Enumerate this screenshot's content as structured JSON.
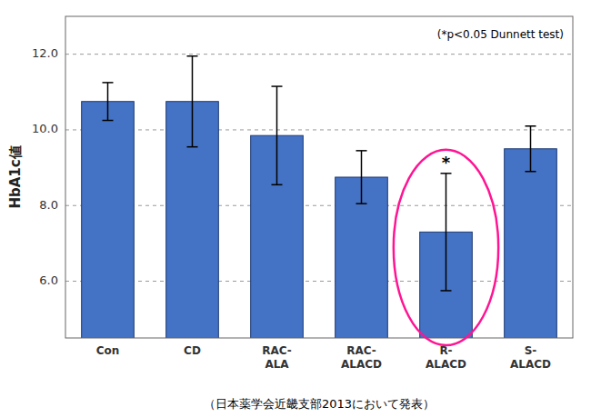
{
  "chart_data": {
    "type": "bar",
    "categories": [
      "Con",
      "CD",
      "RAC-\nALA",
      "RAC-\nALACD",
      "R-\nALACD",
      "S-\nALACD"
    ],
    "values": [
      10.75,
      10.75,
      9.85,
      8.75,
      7.3,
      9.5
    ],
    "errors": [
      0.5,
      1.2,
      1.3,
      0.7,
      1.55,
      0.6
    ],
    "color": "#4472C4",
    "y_label": "HbA1c値",
    "ylim": [
      4.5,
      13.0
    ],
    "yticks": [
      {
        "value": 6.0,
        "label": "6.0"
      },
      {
        "value": 8.0,
        "label": "8.0"
      },
      {
        "value": 10.0,
        "label": "10.0"
      },
      {
        "value": 12.0,
        "label": "12.0"
      }
    ],
    "grid": true,
    "annotations": [
      {
        "text": "(*p<0.05 Dunnett test)"
      },
      {
        "text": "*",
        "category": "R-\nALACD",
        "color": "#FF1493"
      }
    ],
    "footer": "（日本薬学会近畿支部2013において発表）"
  }
}
